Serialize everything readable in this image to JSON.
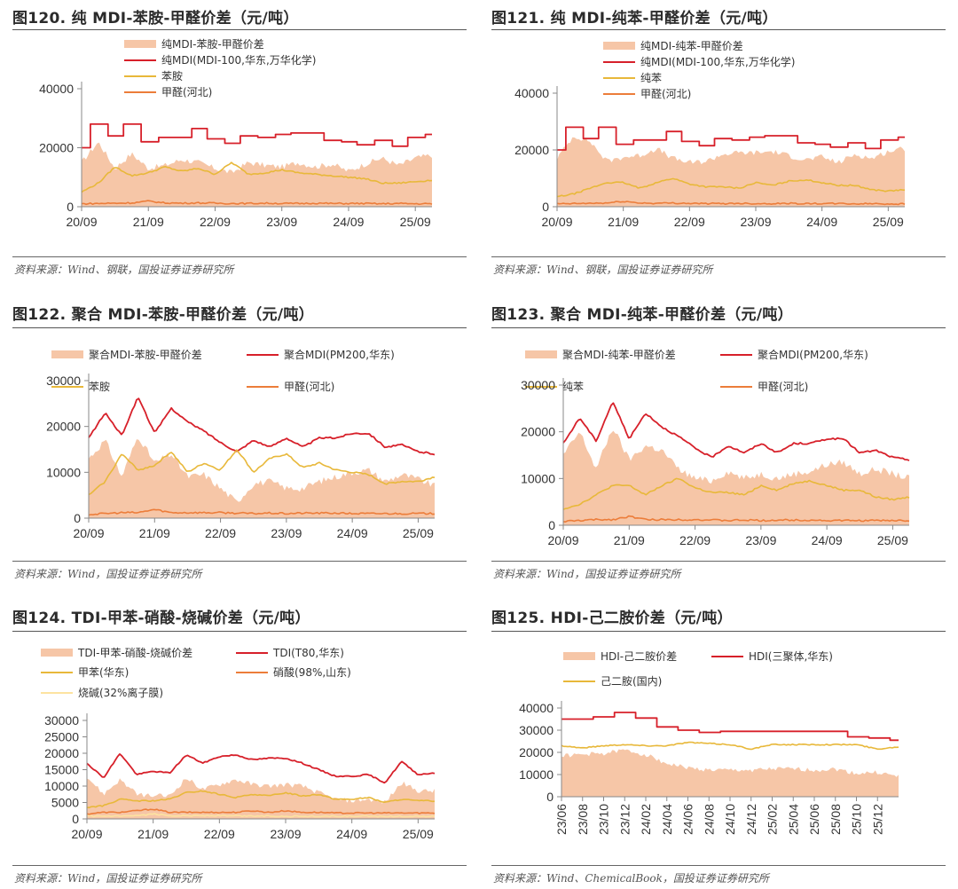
{
  "colors": {
    "spread": "#f6c6a7",
    "main": "#d7202a",
    "feed1": "#e8b83a",
    "feed2": "#ec7d3a",
    "feed3": "#fde3a0",
    "axis": "#888888"
  },
  "panels": [
    {
      "title": "图120. 纯 MDI-苯胺-甲醛价差（元/吨）",
      "source": "资料来源：Wind、钢联，国投证券证券研究所"
    },
    {
      "title": "图121. 纯 MDI-纯苯-甲醛价差（元/吨）",
      "source": "资料来源：Wind、钢联，国投证券证券研究所"
    },
    {
      "title": "图122. 聚合 MDI-苯胺-甲醛价差（元/吨）",
      "source": "资料来源：Wind，国投证券证券研究所"
    },
    {
      "title": "图123. 聚合 MDI-纯苯-甲醛价差（元/吨）",
      "source": "资料来源：Wind，国投证券证券研究所"
    },
    {
      "title": "图124. TDI-甲苯-硝酸-烧碱价差（元/吨）",
      "source": "资料来源：Wind，国投证券证券研究所"
    },
    {
      "title": "图125. HDI-己二胺价差（元/吨）",
      "source": "资料来源：Wind、ChemicalBook，国投证券证券研究所"
    }
  ],
  "chart_data": [
    {
      "type": "area",
      "title": "纯 MDI-苯胺-甲醛价差（元/吨）",
      "xlabel": "",
      "ylabel": "元/吨",
      "ylim": [
        0,
        40000
      ],
      "yticks": [
        "0",
        "20000",
        "40000"
      ],
      "xticks": [
        "20/09",
        "21/09",
        "22/09",
        "23/09",
        "24/09",
        "25/09"
      ],
      "x": [
        "20/09",
        "20/12",
        "21/03",
        "21/06",
        "21/09",
        "21/12",
        "22/03",
        "22/06",
        "22/09",
        "22/12",
        "23/03",
        "23/06",
        "23/09",
        "23/12",
        "24/03",
        "24/06",
        "24/09",
        "24/12",
        "25/03",
        "25/06",
        "25/09",
        "25/12"
      ],
      "series": [
        {
          "name": "纯MDI-苯胺-甲醛价差",
          "kind": "area",
          "color_key": "spread",
          "values": [
            15000,
            22000,
            13000,
            18000,
            13000,
            14000,
            16000,
            15000,
            13000,
            11500,
            15000,
            14000,
            13500,
            15000,
            13500,
            14500,
            12000,
            14500,
            16500,
            14000,
            16500,
            17500
          ]
        },
        {
          "name": "纯MDI(MDI-100,华东,万华化学)",
          "kind": "step",
          "color_key": "main",
          "values": [
            20000,
            28000,
            24000,
            28000,
            22000,
            23500,
            23500,
            26500,
            23000,
            21500,
            24000,
            23500,
            24500,
            25000,
            25000,
            22500,
            22000,
            21000,
            22500,
            20500,
            23500,
            24500
          ]
        },
        {
          "name": "苯胺",
          "kind": "line",
          "color_key": "feed1",
          "values": [
            5000,
            8000,
            13500,
            10500,
            11500,
            13500,
            12000,
            13000,
            11000,
            15000,
            11000,
            11500,
            12500,
            11500,
            11000,
            10500,
            10000,
            9500,
            8000,
            8000,
            8500,
            9000
          ]
        },
        {
          "name": "甲醛(河北)",
          "kind": "line",
          "color_key": "feed2",
          "values": [
            1000,
            1100,
            1200,
            1300,
            1900,
            1300,
            1200,
            1300,
            1200,
            1100,
            1100,
            1200,
            1100,
            1100,
            1200,
            1100,
            1100,
            1100,
            1000,
            1100,
            1000,
            1000
          ]
        }
      ],
      "legend_position": "top"
    },
    {
      "type": "area",
      "title": "纯 MDI-纯苯-甲醛价差（元/吨）",
      "xlabel": "",
      "ylabel": "元/吨",
      "ylim": [
        0,
        40000
      ],
      "yticks": [
        "0",
        "20000",
        "40000"
      ],
      "xticks": [
        "20/09",
        "21/09",
        "22/09",
        "23/09",
        "24/09",
        "25/09"
      ],
      "x": [
        "20/09",
        "20/12",
        "21/03",
        "21/06",
        "21/09",
        "21/12",
        "22/03",
        "22/06",
        "22/09",
        "22/12",
        "23/03",
        "23/06",
        "23/09",
        "23/12",
        "24/03",
        "24/06",
        "24/09",
        "24/12",
        "25/03",
        "25/06",
        "25/09",
        "25/12"
      ],
      "series": [
        {
          "name": "纯MDI-纯苯-甲醛价差",
          "kind": "area",
          "color_key": "spread",
          "values": [
            17000,
            25000,
            23000,
            16000,
            17500,
            18000,
            20500,
            17000,
            15500,
            16000,
            18500,
            19000,
            19000,
            19500,
            18000,
            16500,
            17500,
            15500,
            18500,
            17000,
            19500,
            20500
          ]
        },
        {
          "name": "纯MDI(MDI-100,华东,万华化学)",
          "kind": "step",
          "color_key": "main",
          "values": [
            20000,
            28000,
            24000,
            28000,
            22000,
            23500,
            23500,
            26500,
            23000,
            21500,
            24000,
            23500,
            24500,
            25000,
            25000,
            22500,
            22000,
            21000,
            22500,
            20500,
            23500,
            24500
          ]
        },
        {
          "name": "纯苯",
          "kind": "line",
          "color_key": "feed1",
          "values": [
            3500,
            4500,
            6500,
            8500,
            8500,
            6500,
            8500,
            10000,
            8000,
            7000,
            7000,
            6500,
            8500,
            7500,
            9000,
            9500,
            8500,
            7500,
            7500,
            6000,
            5500,
            6000
          ]
        },
        {
          "name": "甲醛(河北)",
          "kind": "line",
          "color_key": "feed2",
          "values": [
            1000,
            1100,
            1200,
            1300,
            1900,
            1300,
            1200,
            1300,
            1200,
            1100,
            1100,
            1200,
            1100,
            1100,
            1200,
            1100,
            1100,
            1100,
            1000,
            1100,
            1000,
            1000
          ]
        }
      ],
      "legend_position": "top"
    },
    {
      "type": "area",
      "title": "聚合 MDI-苯胺-甲醛价差（元/吨）",
      "xlabel": "",
      "ylabel": "元/吨",
      "ylim": [
        0,
        30000
      ],
      "yticks": [
        "0",
        "10000",
        "20000",
        "30000"
      ],
      "xticks": [
        "20/09",
        "21/09",
        "22/09",
        "23/09",
        "24/09",
        "25/09"
      ],
      "x": [
        "20/09",
        "20/12",
        "21/03",
        "21/06",
        "21/09",
        "21/12",
        "22/03",
        "22/06",
        "22/09",
        "22/12",
        "23/03",
        "23/06",
        "23/09",
        "23/12",
        "24/03",
        "24/06",
        "24/09",
        "24/12",
        "25/03",
        "25/06",
        "25/09",
        "25/12"
      ],
      "series": [
        {
          "name": "聚合MDI-苯胺-甲醛价差",
          "kind": "area",
          "color_key": "spread",
          "values": [
            13000,
            17000,
            9000,
            18000,
            12000,
            14000,
            9000,
            9500,
            6500,
            3500,
            7500,
            8000,
            6500,
            6500,
            8000,
            9000,
            10000,
            10500,
            8000,
            9500,
            8500,
            7000
          ]
        },
        {
          "name": "聚合MDI(PM200,华东)",
          "kind": "line",
          "color_key": "main",
          "values": [
            17500,
            23000,
            18000,
            26500,
            18500,
            24000,
            21000,
            19000,
            16500,
            14500,
            17000,
            15500,
            17500,
            15500,
            17500,
            17500,
            18500,
            18500,
            15500,
            16000,
            14500,
            14000
          ]
        },
        {
          "name": "苯胺",
          "kind": "line",
          "color_key": "feed1",
          "values": [
            5000,
            8000,
            14000,
            10500,
            11500,
            14500,
            10000,
            12000,
            10500,
            15000,
            10000,
            13000,
            14000,
            11000,
            12000,
            10500,
            10000,
            9500,
            7500,
            8000,
            8000,
            9000
          ]
        },
        {
          "name": "甲醛(河北)",
          "kind": "line",
          "color_key": "feed2",
          "values": [
            800,
            1000,
            1200,
            1200,
            1900,
            1200,
            1200,
            1200,
            1200,
            1100,
            1000,
            1100,
            1000,
            1100,
            1100,
            1100,
            1000,
            1000,
            1000,
            1000,
            1000,
            1000
          ]
        }
      ],
      "legend_position": "top"
    },
    {
      "type": "area",
      "title": "聚合 MDI-纯苯-甲醛价差（元/吨）",
      "xlabel": "",
      "ylabel": "元/吨",
      "ylim": [
        0,
        30000
      ],
      "yticks": [
        "0",
        "10000",
        "20000",
        "30000"
      ],
      "xticks": [
        "20/09",
        "21/09",
        "22/09",
        "23/09",
        "24/09",
        "25/09"
      ],
      "x": [
        "20/09",
        "20/12",
        "21/03",
        "21/06",
        "21/09",
        "21/12",
        "22/03",
        "22/06",
        "22/09",
        "22/12",
        "23/03",
        "23/06",
        "23/09",
        "23/12",
        "24/03",
        "24/06",
        "24/09",
        "24/12",
        "25/03",
        "25/06",
        "25/09",
        "25/12"
      ],
      "series": [
        {
          "name": "聚合MDI-纯苯-甲醛价差",
          "kind": "area",
          "color_key": "spread",
          "values": [
            15000,
            20000,
            12000,
            21000,
            14000,
            17000,
            16000,
            12000,
            10000,
            9500,
            11500,
            10000,
            11000,
            10000,
            11000,
            11500,
            13000,
            13500,
            11000,
            12000,
            11000,
            10000
          ]
        },
        {
          "name": "聚合MDI(PM200,华东)",
          "kind": "line",
          "color_key": "main",
          "values": [
            17500,
            23000,
            18000,
            26500,
            18500,
            24000,
            21000,
            19000,
            16500,
            14500,
            17000,
            15500,
            17500,
            15500,
            17500,
            17500,
            18500,
            18500,
            15500,
            16000,
            14500,
            14000
          ]
        },
        {
          "name": "纯苯",
          "kind": "line",
          "color_key": "feed1",
          "values": [
            3500,
            4500,
            6500,
            8500,
            8500,
            6500,
            8500,
            10000,
            8000,
            7000,
            7000,
            6500,
            8500,
            7500,
            9000,
            9500,
            8500,
            7500,
            7500,
            6000,
            5500,
            6000
          ]
        },
        {
          "name": "甲醛(河北)",
          "kind": "line",
          "color_key": "feed2",
          "values": [
            800,
            1000,
            1200,
            1200,
            1900,
            1200,
            1200,
            1200,
            1200,
            1100,
            1000,
            1100,
            1000,
            1100,
            1100,
            1100,
            1000,
            1000,
            1000,
            1000,
            1000,
            1000
          ]
        }
      ],
      "legend_position": "top"
    },
    {
      "type": "area",
      "title": "TDI-甲苯-硝酸-烧碱价差（元/吨）",
      "xlabel": "",
      "ylabel": "元/吨",
      "ylim": [
        0,
        30000
      ],
      "yticks": [
        "0",
        "5000",
        "10000",
        "15000",
        "20000",
        "25000",
        "30000"
      ],
      "xticks": [
        "20/09",
        "21/09",
        "22/09",
        "23/09",
        "24/09",
        "25/09"
      ],
      "x": [
        "20/09",
        "20/12",
        "21/03",
        "21/06",
        "21/09",
        "21/12",
        "22/03",
        "22/06",
        "22/09",
        "22/12",
        "23/03",
        "23/06",
        "23/09",
        "23/12",
        "24/03",
        "24/06",
        "24/09",
        "24/12",
        "25/03",
        "25/06",
        "25/09",
        "25/12"
      ],
      "series": [
        {
          "name": "TDI-甲苯-硝酸-烧碱价差",
          "kind": "area",
          "color_key": "spread",
          "values": [
            13000,
            7500,
            12000,
            7500,
            7000,
            7000,
            12500,
            9000,
            10500,
            12000,
            10500,
            10000,
            10500,
            10000,
            8000,
            6000,
            5500,
            6000,
            5000,
            11000,
            8500,
            8500
          ]
        },
        {
          "name": "TDI(T80,华东)",
          "kind": "line",
          "color_key": "main",
          "values": [
            17000,
            12500,
            20000,
            13500,
            14500,
            14000,
            19500,
            17000,
            19000,
            19500,
            18000,
            18500,
            18500,
            17000,
            15000,
            13000,
            13000,
            13500,
            11000,
            17500,
            13500,
            14000
          ]
        },
        {
          "name": "甲苯(华东)",
          "kind": "line",
          "color_key": "feed1",
          "values": [
            3500,
            4000,
            6000,
            5500,
            5500,
            6000,
            8000,
            8500,
            7500,
            6500,
            7500,
            7000,
            8000,
            7000,
            7500,
            6000,
            6000,
            6500,
            5000,
            6000,
            5500,
            5500
          ]
        },
        {
          "name": "硝酸(98%,山东)",
          "kind": "line",
          "color_key": "feed2",
          "values": [
            1500,
            2000,
            2000,
            2500,
            3000,
            2000,
            2000,
            2000,
            2000,
            2000,
            2500,
            2000,
            2500,
            2000,
            2000,
            1800,
            1800,
            1800,
            1800,
            1800,
            1800,
            1800
          ]
        },
        {
          "name": "烧碱(32%离子膜)",
          "kind": "line",
          "color_key": "feed3",
          "values": [
            800,
            800,
            800,
            900,
            1500,
            1000,
            1000,
            1000,
            1000,
            900,
            900,
            900,
            800,
            800,
            800,
            800,
            800,
            800,
            800,
            800,
            800,
            800
          ]
        }
      ],
      "legend_position": "top"
    },
    {
      "type": "area",
      "title": "HDI-己二胺价差（元/吨）",
      "xlabel": "",
      "ylabel": "元/吨",
      "ylim": [
        0,
        40000
      ],
      "yticks": [
        "0",
        "10000",
        "20000",
        "30000",
        "40000"
      ],
      "xticks": [
        "23/06",
        "23/08",
        "23/10",
        "23/12",
        "24/02",
        "24/04",
        "24/06",
        "24/08",
        "24/10",
        "24/12",
        "25/02",
        "25/04",
        "25/06",
        "25/08",
        "25/10",
        "25/12"
      ],
      "x": [
        "23/06",
        "23/08",
        "23/10",
        "23/12",
        "24/02",
        "24/04",
        "24/06",
        "24/08",
        "24/10",
        "24/12",
        "25/02",
        "25/04",
        "25/06",
        "25/08",
        "25/10",
        "25/12",
        "26/01"
      ],
      "series": [
        {
          "name": "HDI-己二胺价差",
          "kind": "area",
          "color_key": "spread",
          "values": [
            18500,
            19000,
            19500,
            21000,
            19000,
            15000,
            13000,
            12000,
            12000,
            12000,
            12500,
            12500,
            12000,
            12500,
            10500,
            11000,
            9000
          ]
        },
        {
          "name": "HDI(三聚体,华东)",
          "kind": "step",
          "color_key": "main",
          "values": [
            35000,
            35000,
            36000,
            38000,
            35500,
            31500,
            30000,
            29000,
            29500,
            29500,
            29500,
            29500,
            29500,
            29500,
            27000,
            26500,
            25500
          ]
        },
        {
          "name": "己二胺(国内)",
          "kind": "line",
          "color_key": "feed1",
          "values": [
            23000,
            22000,
            23000,
            23500,
            23000,
            23000,
            24500,
            24000,
            23500,
            21500,
            23500,
            23500,
            23500,
            23500,
            23500,
            21500,
            22500
          ]
        }
      ],
      "legend_position": "top"
    }
  ]
}
